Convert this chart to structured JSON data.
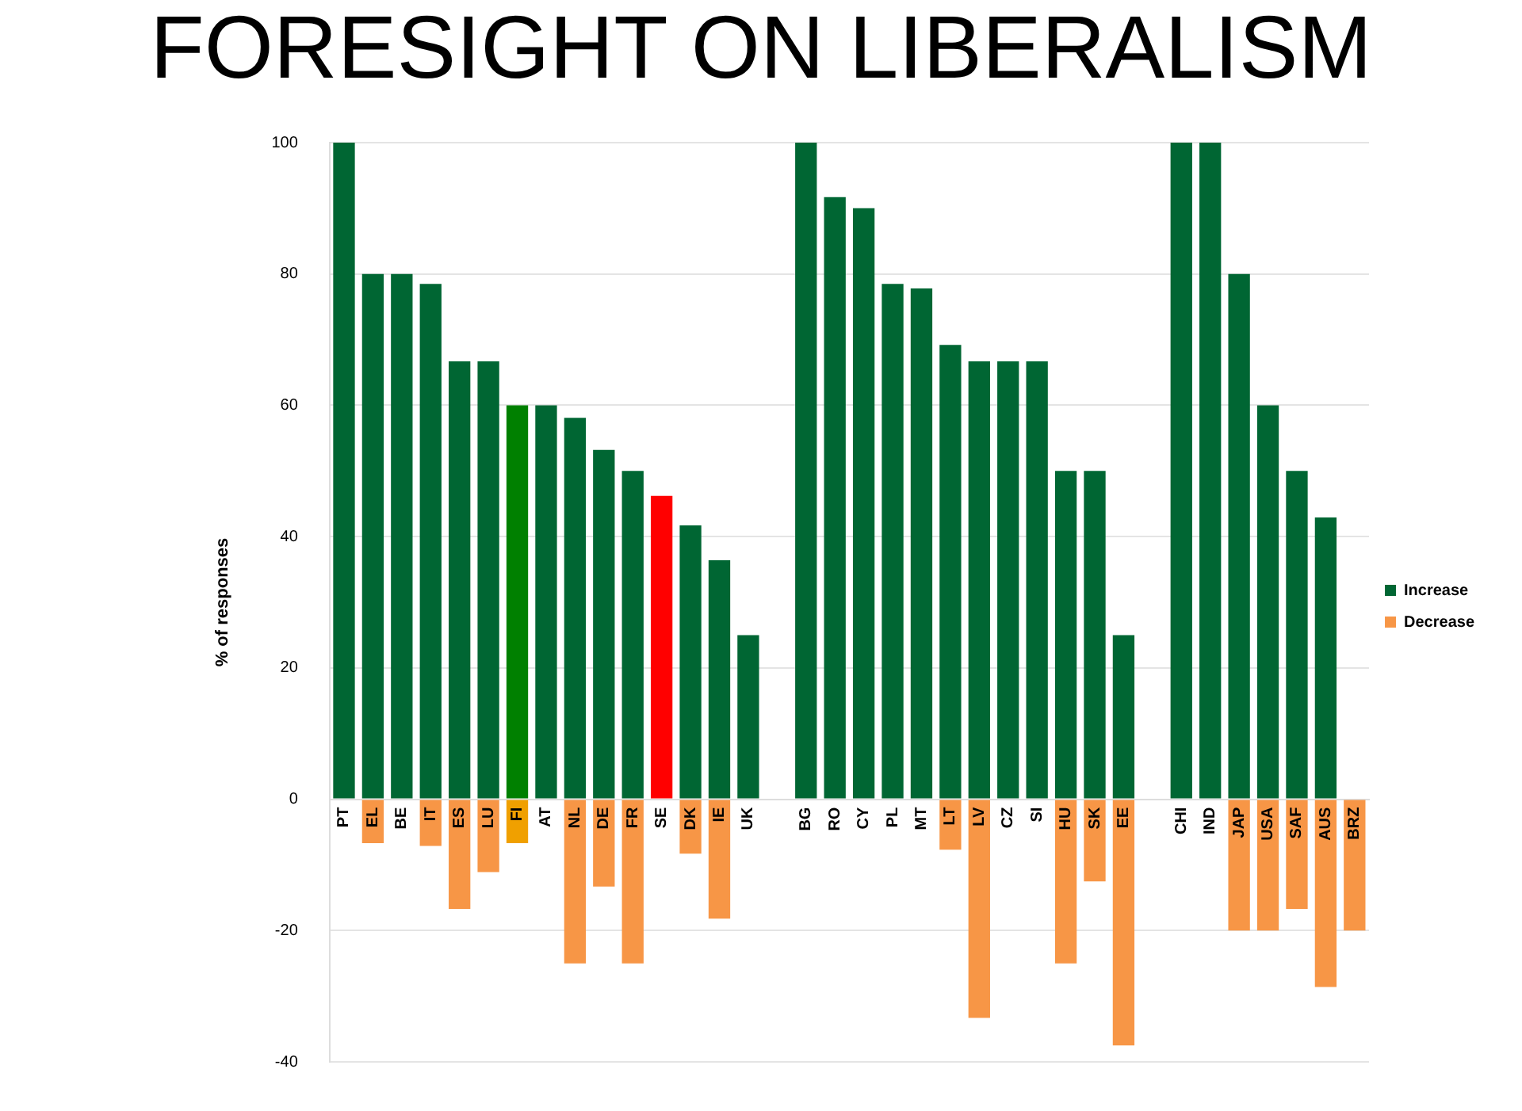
{
  "chart_data": {
    "type": "bar",
    "title": "FORESIGHT ON LIBERALISM",
    "ylabel": "% of responses",
    "categories": [
      "PT",
      "EL",
      "BE",
      "IT",
      "ES",
      "LU",
      "FI",
      "AT",
      "NL",
      "DE",
      "FR",
      "SE",
      "DK",
      "IE",
      "UK",
      null,
      "BG",
      "RO",
      "CY",
      "PL",
      "MT",
      "LT",
      "LV",
      "CZ",
      "SI",
      "HU",
      "SK",
      "EE",
      null,
      "CHI",
      "IND",
      "JAP",
      "USA",
      "SAF",
      "AUS",
      "BRZ"
    ],
    "stacked": true,
    "series": [
      {
        "name": "Increase",
        "color": "#006633",
        "colors": [
          "#006633",
          "#006633",
          "#006633",
          "#006633",
          "#006633",
          "#006633",
          "#008000",
          "#006633",
          "#006633",
          "#006633",
          "#006633",
          "#ff0000",
          "#006633",
          "#006633",
          "#006633",
          "#006633",
          "#006633",
          "#006633",
          "#006633",
          "#006633",
          "#006633",
          "#006633",
          "#006633",
          "#006633",
          "#006633",
          "#006633",
          "#006633",
          "#006633",
          "#006633",
          "#006633",
          "#006633",
          "#006633",
          "#006633",
          "#006633",
          "#006633",
          "#006633"
        ],
        "values": [
          100,
          80,
          80,
          78.5,
          66.7,
          66.7,
          60,
          60,
          58.1,
          53.2,
          50,
          46.2,
          41.7,
          36.4,
          25,
          null,
          100,
          91.7,
          90,
          78.5,
          77.8,
          69.2,
          66.7,
          66.7,
          66.7,
          50,
          50,
          25,
          null,
          100,
          100,
          80,
          60,
          50,
          42.9,
          null
        ]
      },
      {
        "name": "Decrease",
        "color": "#f79646",
        "colors": [
          "#f79646",
          "#f79646",
          "#f79646",
          "#f79646",
          "#f79646",
          "#f79646",
          "#f0a000",
          "#f79646",
          "#f79646",
          "#f79646",
          "#f79646",
          "#f79646",
          "#f79646",
          "#f79646",
          "#f79646",
          "#f79646",
          "#f79646",
          "#f79646",
          "#f79646",
          "#f79646",
          "#f79646",
          "#f79646",
          "#f79646",
          "#f79646",
          "#f79646",
          "#f79646",
          "#f79646",
          "#f79646",
          "#f79646",
          "#f79646",
          "#f79646",
          "#f79646",
          "#f79646",
          "#f79646",
          "#f79646",
          "#f79646"
        ],
        "values": [
          null,
          -6.7,
          null,
          -7.1,
          -16.7,
          -11.1,
          -6.7,
          null,
          -25,
          -13.3,
          -25,
          null,
          -8.3,
          -18.2,
          null,
          null,
          null,
          null,
          null,
          null,
          null,
          -7.7,
          -33.3,
          null,
          null,
          -25,
          -12.5,
          -37.5,
          null,
          null,
          null,
          -20,
          -20,
          -16.7,
          -28.6,
          -20
        ]
      }
    ],
    "ylim": [
      -40,
      100
    ],
    "yticks": [
      -40,
      -20,
      0,
      20,
      40,
      60,
      80,
      100
    ],
    "grid": "y",
    "legend": "right"
  }
}
